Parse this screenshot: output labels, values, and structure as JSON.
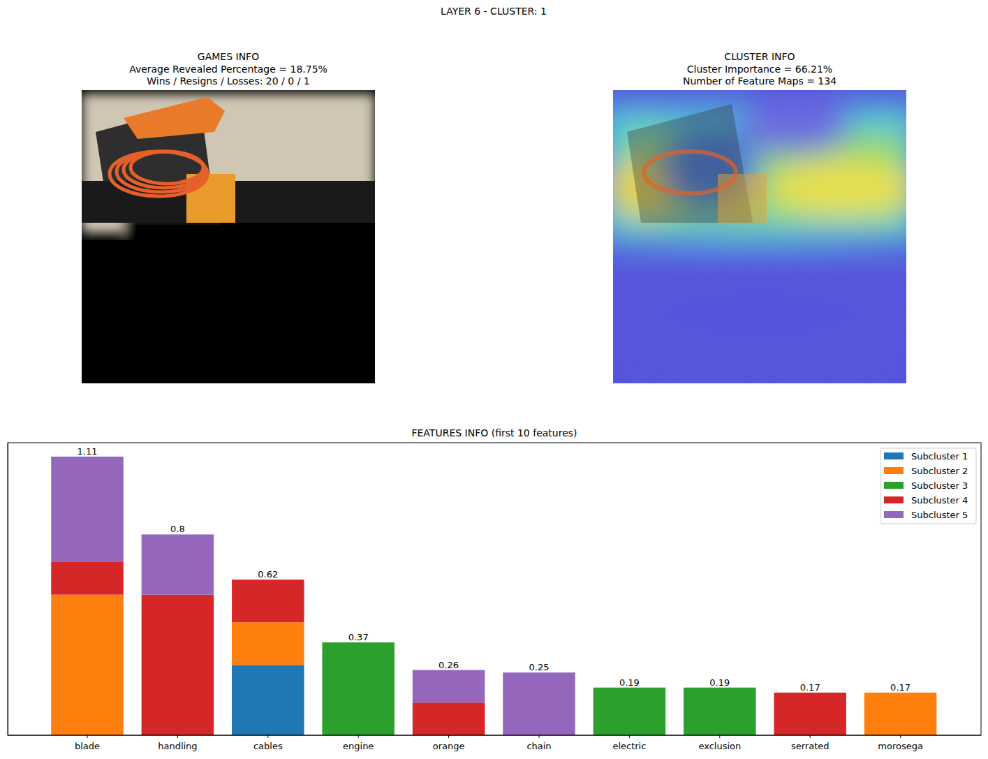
{
  "figure": {
    "title": "LAYER 6 - CLUSTER: 1",
    "panels": [
      {
        "title": [
          "GAMES INFO",
          "Average Revealed Percentage = 18.75%",
          "Wins / Resigns / Losses: 20 / 0 / 1"
        ]
      },
      {
        "title": [
          "CLUSTER INFO",
          "Cluster Importance = 66.21%",
          "Number of Feature Maps = 134"
        ]
      }
    ]
  },
  "chart_data": {
    "type": "bar",
    "stacked": true,
    "title": "FEATURES INFO (first 10 features)",
    "categories": [
      "blade",
      "handling",
      "cables",
      "engine",
      "orange",
      "chain",
      "electric",
      "exclusion",
      "serrated",
      "morosega"
    ],
    "series": [
      {
        "name": "Subcluster 1",
        "color": "#1f77b4",
        "values": [
          0,
          0,
          0.28,
          0,
          0,
          0,
          0,
          0,
          0,
          0
        ]
      },
      {
        "name": "Subcluster 2",
        "color": "#ff7f0e",
        "values": [
          0.56,
          0,
          0.17,
          0,
          0,
          0,
          0,
          0,
          0,
          0.17
        ]
      },
      {
        "name": "Subcluster 3",
        "color": "#2ca02c",
        "values": [
          0,
          0,
          0,
          0.37,
          0,
          0,
          0.19,
          0.19,
          0,
          0
        ]
      },
      {
        "name": "Subcluster 4",
        "color": "#d62728",
        "values": [
          0.13,
          0.56,
          0.17,
          0,
          0.13,
          0,
          0,
          0,
          0.17,
          0
        ]
      },
      {
        "name": "Subcluster 5",
        "color": "#9467bd",
        "values": [
          0.42,
          0.24,
          0,
          0,
          0.13,
          0.25,
          0,
          0,
          0,
          0
        ]
      }
    ],
    "totals": [
      1.11,
      0.8,
      0.62,
      0.37,
      0.26,
      0.25,
      0.19,
      0.19,
      0.17,
      0.17
    ],
    "ylim": [
      0,
      1.1655
    ],
    "tick_labels": "x",
    "legend": "upper right"
  }
}
